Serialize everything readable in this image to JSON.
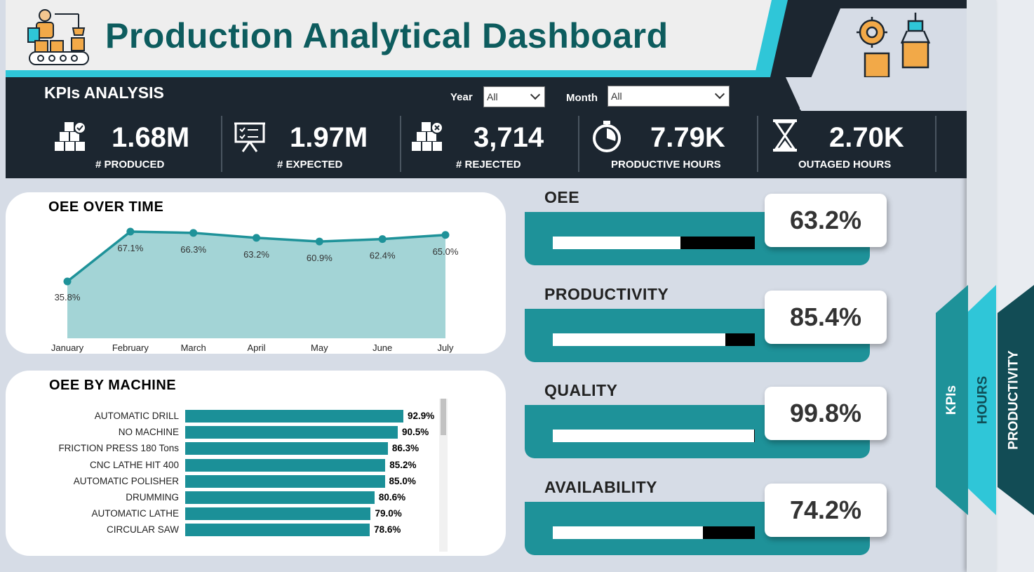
{
  "header": {
    "title": "Production Analytical Dashboard"
  },
  "kpi_section": {
    "title": "KPIs ANALYSIS",
    "year_label": "Year",
    "year_value": "All",
    "month_label": "Month",
    "month_value": "All"
  },
  "kpis": [
    {
      "value": "1.68M",
      "label": "# PRODUCED",
      "icon": "boxes-check-icon"
    },
    {
      "value": "1.97M",
      "label": "# EXPECTED",
      "icon": "presentation-board-icon"
    },
    {
      "value": "3,714",
      "label": "# REJECTED",
      "icon": "boxes-x-icon"
    },
    {
      "value": "7.79K",
      "label": "PRODUCTIVE HOURS",
      "icon": "stopwatch-icon"
    },
    {
      "value": "2.70K",
      "label": "OUTAGED HOURS",
      "icon": "hourglass-icon"
    }
  ],
  "nav_tabs": {
    "kpis": "KPIs",
    "hours": "HOURS",
    "productivity": "PRODUCTIVITY"
  },
  "chart_data": [
    {
      "type": "area",
      "title": "OEE OVER TIME",
      "categories": [
        "January",
        "February",
        "March",
        "April",
        "May",
        "June",
        "July"
      ],
      "values": [
        35.8,
        67.1,
        66.3,
        63.2,
        60.9,
        62.4,
        65.0
      ],
      "labels": [
        "35.8%",
        "67.1%",
        "66.3%",
        "63.2%",
        "60.9%",
        "62.4%",
        "65.0%"
      ],
      "grid": false
    },
    {
      "type": "bar",
      "orientation": "horizontal",
      "title": "OEE BY MACHINE",
      "categories": [
        "AUTOMATIC DRILL",
        "NO MACHINE",
        "FRICTION PRESS 180 Tons",
        "CNC LATHE HIT 400",
        "AUTOMATIC POLISHER",
        "DRUMMING",
        "AUTOMATIC LATHE",
        "CIRCULAR SAW"
      ],
      "values": [
        92.9,
        90.5,
        86.3,
        85.2,
        85.0,
        80.6,
        79.0,
        78.6
      ],
      "labels": [
        "92.9%",
        "90.5%",
        "86.3%",
        "85.2%",
        "85.0%",
        "80.6%",
        "79.0%",
        "78.6%"
      ]
    }
  ],
  "metrics": [
    {
      "title": "OEE",
      "value": "63.2%",
      "fraction": 0.632
    },
    {
      "title": "PRODUCTIVITY",
      "value": "85.4%",
      "fraction": 0.854
    },
    {
      "title": "QUALITY",
      "value": "99.8%",
      "fraction": 0.998
    },
    {
      "title": "AVAILABILITY",
      "value": "74.2%",
      "fraction": 0.742
    }
  ],
  "colors": {
    "teal": "#1e9299",
    "dark": "#1c2630",
    "area_fill": "#a3d4d6",
    "accent_cyan": "#2fc6d8",
    "title_green": "#0d5c5e"
  }
}
